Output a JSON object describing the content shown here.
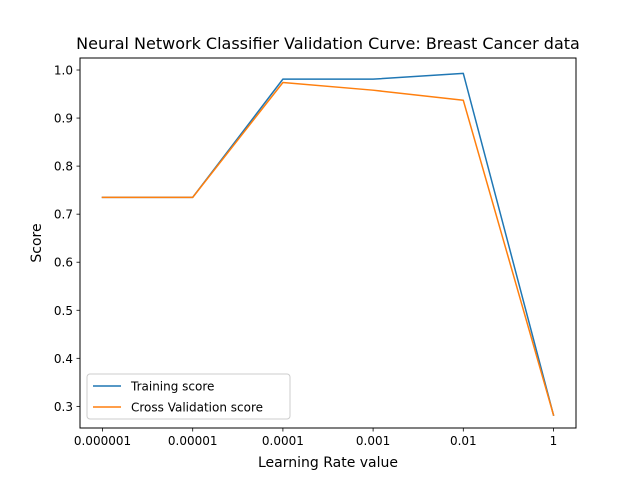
{
  "chart_data": {
    "type": "line",
    "title": "Neural Network Classifier Validation Curve: Breast Cancer data",
    "xlabel": "Learning Rate value",
    "ylabel": "Score",
    "categories": [
      "0.000001",
      "0.00001",
      "0.0001",
      "0.001",
      "0.01",
      "1"
    ],
    "ylim": [
      0.255,
      1.025
    ],
    "yticks": [
      0.3,
      0.4,
      0.5,
      0.6,
      0.7,
      0.8,
      0.9,
      1.0
    ],
    "ytick_labels": [
      "0.3",
      "0.4",
      "0.5",
      "0.6",
      "0.7",
      "0.8",
      "0.9",
      "1.0"
    ],
    "grid": false,
    "legend_position": "lower-left",
    "series": [
      {
        "name": "Training score",
        "color": "#1f77b4",
        "values": [
          0.735,
          0.735,
          0.981,
          0.981,
          0.993,
          0.282
        ]
      },
      {
        "name": "Cross Validation score",
        "color": "#ff7f0e",
        "values": [
          0.735,
          0.735,
          0.974,
          0.958,
          0.937,
          0.282
        ]
      }
    ]
  }
}
